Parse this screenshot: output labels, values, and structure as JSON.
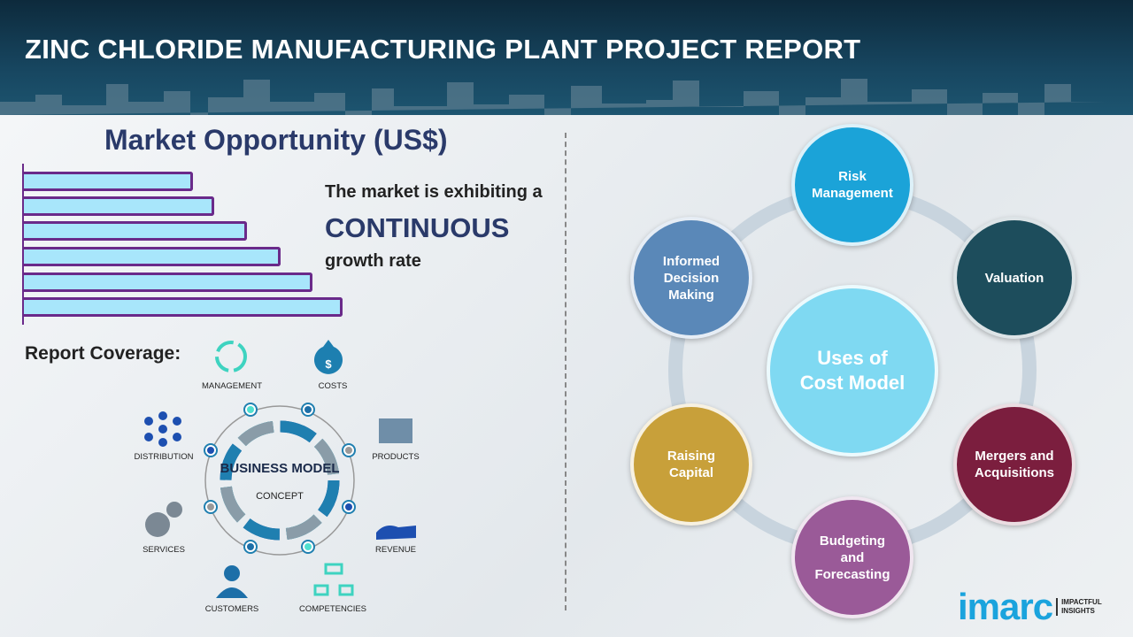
{
  "header": {
    "title": "ZINC CHLORIDE MANUFACTURING PLANT PROJECT REPORT"
  },
  "market": {
    "title": "Market Opportunity (US$)",
    "line1": "The market is exhibiting a",
    "highlight": "CONTINUOUS",
    "line2": "growth rate"
  },
  "coverage": {
    "title": "Report Coverage:",
    "center_title": "BUSINESS MODEL",
    "center_sub": "CONCEPT",
    "items": [
      "MANAGEMENT",
      "COSTS",
      "DISTRIBUTION",
      "PRODUCTS",
      "SERVICES",
      "REVENUE",
      "CUSTOMERS",
      "COMPETENCIES"
    ]
  },
  "cost_model": {
    "center": "Uses of Cost Model",
    "items": [
      {
        "label": "Risk Management",
        "color": "#1ba3d8"
      },
      {
        "label": "Valuation",
        "color": "#1d4d5c"
      },
      {
        "label": "Mergers and Acquisitions",
        "color": "#7b1e3e"
      },
      {
        "label": "Budgeting and Forecasting",
        "color": "#9a5a98"
      },
      {
        "label": "Raising Capital",
        "color": "#c8a03a"
      },
      {
        "label": "Informed Decision Making",
        "color": "#5a88b8"
      }
    ]
  },
  "logo": {
    "brand": "imarc",
    "tagline1": "IMPACTFUL",
    "tagline2": "INSIGHTS"
  }
}
